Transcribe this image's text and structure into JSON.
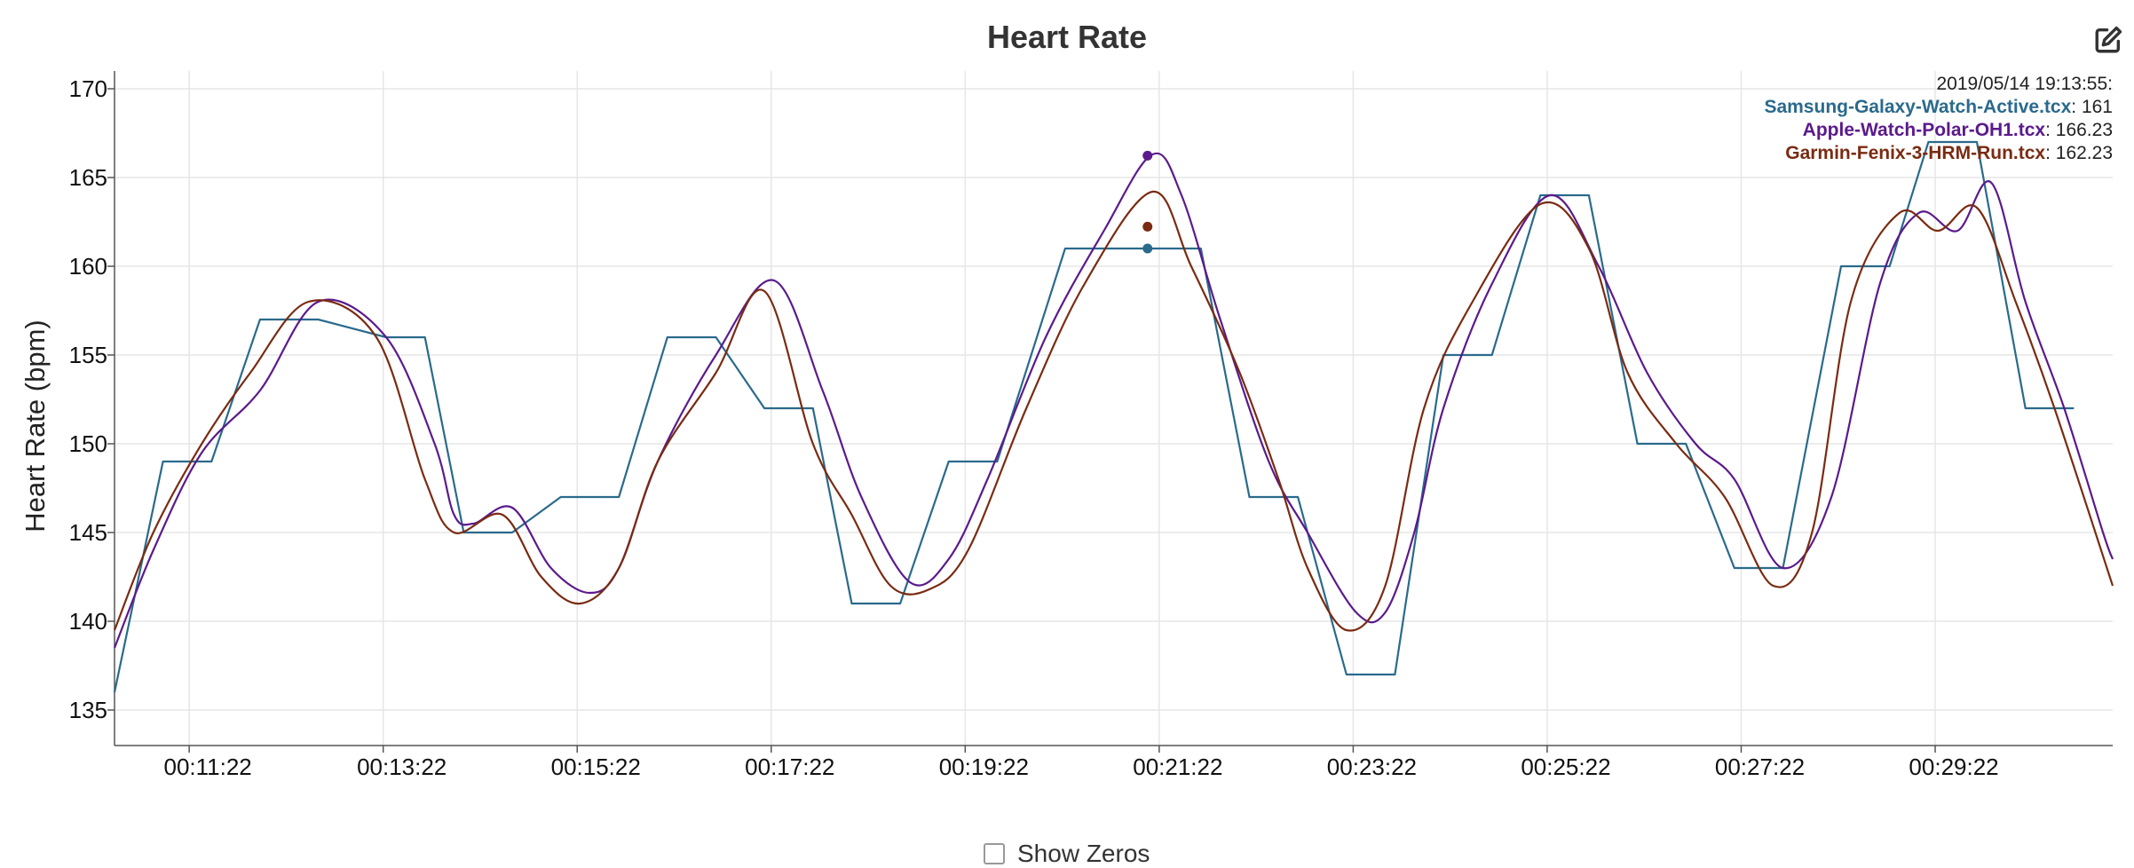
{
  "chart_data": {
    "type": "line",
    "title": "Heart Rate",
    "xlabel": "",
    "ylabel": "Heart Rate (bpm)",
    "ylim": [
      133,
      171
    ],
    "yticks": [
      135,
      140,
      145,
      150,
      155,
      160,
      165,
      170
    ],
    "xlim": [
      10.6,
      31.2
    ],
    "xticks": [
      11.37,
      13.37,
      15.37,
      17.37,
      19.37,
      21.37,
      23.37,
      25.37,
      27.37,
      29.37
    ],
    "xtick_labels": [
      "00:11:22",
      "00:13:22",
      "00:15:22",
      "00:17:22",
      "00:19:22",
      "00:21:22",
      "00:23:22",
      "00:25:22",
      "00:27:22",
      "00:29:22"
    ],
    "grid": true,
    "x_unit": "minutes",
    "legend": {
      "position": "top-right",
      "timestamp": "2019/05/14 19:13:55:",
      "entries": [
        {
          "name": "Samsung-Galaxy-Watch-Active.tcx",
          "value_text": ": 161"
        },
        {
          "name": "Apple-Watch-Polar-OH1.tcx",
          "value_text": ": 166.23"
        },
        {
          "name": "Garmin-Fenix-3-HRM-Run.tcx",
          "value_text": ": 162.23"
        }
      ]
    },
    "cursor": {
      "x": 21.25,
      "values": [
        161,
        166.23,
        162.23
      ]
    },
    "series": [
      {
        "name": "Samsung-Galaxy-Watch-Active.tcx",
        "color": "#2a6a8c",
        "interpolation": "linear",
        "points": [
          [
            10.6,
            136
          ],
          [
            11.1,
            149
          ],
          [
            11.6,
            149
          ],
          [
            12.1,
            157
          ],
          [
            12.7,
            157
          ],
          [
            13.4,
            156
          ],
          [
            13.8,
            156
          ],
          [
            14.2,
            145
          ],
          [
            14.7,
            145
          ],
          [
            15.2,
            147
          ],
          [
            15.8,
            147
          ],
          [
            16.3,
            156
          ],
          [
            16.8,
            156
          ],
          [
            17.3,
            152
          ],
          [
            17.8,
            152
          ],
          [
            18.2,
            141
          ],
          [
            18.7,
            141
          ],
          [
            19.2,
            149
          ],
          [
            19.7,
            149
          ],
          [
            20.4,
            161
          ],
          [
            21.3,
            161
          ],
          [
            21.8,
            161
          ],
          [
            22.3,
            147
          ],
          [
            22.8,
            147
          ],
          [
            23.3,
            137
          ],
          [
            23.8,
            137
          ],
          [
            24.3,
            155
          ],
          [
            24.8,
            155
          ],
          [
            25.3,
            164
          ],
          [
            25.8,
            164
          ],
          [
            26.3,
            150
          ],
          [
            26.8,
            150
          ],
          [
            27.3,
            143
          ],
          [
            27.8,
            143
          ],
          [
            28.4,
            160
          ],
          [
            28.9,
            160
          ],
          [
            29.3,
            167
          ],
          [
            29.8,
            167
          ],
          [
            30.3,
            152
          ],
          [
            30.8,
            152
          ]
        ]
      },
      {
        "name": "Apple-Watch-Polar-OH1.tcx",
        "color": "#5b1a8c",
        "interpolation": "smooth",
        "points": [
          [
            10.6,
            138.5
          ],
          [
            11.0,
            144
          ],
          [
            11.5,
            149.5
          ],
          [
            12.1,
            153
          ],
          [
            12.7,
            158
          ],
          [
            13.4,
            156
          ],
          [
            13.9,
            150
          ],
          [
            14.1,
            146
          ],
          [
            14.3,
            145.5
          ],
          [
            14.7,
            146.4
          ],
          [
            15.1,
            143
          ],
          [
            15.5,
            141.6
          ],
          [
            15.8,
            143
          ],
          [
            16.2,
            149
          ],
          [
            16.8,
            155
          ],
          [
            17.4,
            159.2
          ],
          [
            17.9,
            153
          ],
          [
            18.3,
            147
          ],
          [
            18.8,
            142.2
          ],
          [
            19.2,
            143.5
          ],
          [
            19.6,
            148
          ],
          [
            20.2,
            156
          ],
          [
            20.8,
            162
          ],
          [
            21.3,
            166.3
          ],
          [
            21.6,
            164
          ],
          [
            22.0,
            157
          ],
          [
            22.5,
            149
          ],
          [
            22.9,
            145
          ],
          [
            23.4,
            140.5
          ],
          [
            23.7,
            140.5
          ],
          [
            24.0,
            145
          ],
          [
            24.3,
            152
          ],
          [
            24.8,
            159
          ],
          [
            25.4,
            164
          ],
          [
            25.9,
            160
          ],
          [
            26.4,
            154
          ],
          [
            26.9,
            150
          ],
          [
            27.3,
            148
          ],
          [
            27.8,
            143
          ],
          [
            28.3,
            147
          ],
          [
            28.8,
            159
          ],
          [
            29.2,
            163
          ],
          [
            29.6,
            162
          ],
          [
            29.95,
            164.7
          ],
          [
            30.3,
            158
          ],
          [
            30.7,
            152
          ],
          [
            31.1,
            145
          ],
          [
            31.2,
            143.5
          ]
        ]
      },
      {
        "name": "Garmin-Fenix-3-HRM-Run.tcx",
        "color": "#7a2b12",
        "interpolation": "smooth",
        "points": [
          [
            10.6,
            139.5
          ],
          [
            11.0,
            145
          ],
          [
            11.5,
            150
          ],
          [
            12.0,
            154
          ],
          [
            12.6,
            158
          ],
          [
            13.3,
            156
          ],
          [
            13.8,
            148
          ],
          [
            14.1,
            145
          ],
          [
            14.6,
            146
          ],
          [
            15.0,
            142.5
          ],
          [
            15.4,
            141
          ],
          [
            15.8,
            143
          ],
          [
            16.2,
            149
          ],
          [
            16.8,
            154
          ],
          [
            17.3,
            158.6
          ],
          [
            17.8,
            150
          ],
          [
            18.2,
            146
          ],
          [
            18.6,
            142
          ],
          [
            19.0,
            141.8
          ],
          [
            19.4,
            144
          ],
          [
            20.0,
            152
          ],
          [
            20.6,
            159
          ],
          [
            21.3,
            164.2
          ],
          [
            21.7,
            160
          ],
          [
            22.2,
            154
          ],
          [
            22.6,
            148
          ],
          [
            22.9,
            143
          ],
          [
            23.3,
            139.5
          ],
          [
            23.7,
            142
          ],
          [
            24.1,
            152
          ],
          [
            24.6,
            158
          ],
          [
            25.3,
            163.5
          ],
          [
            25.8,
            161
          ],
          [
            26.2,
            154
          ],
          [
            26.7,
            150
          ],
          [
            27.2,
            147
          ],
          [
            27.7,
            142
          ],
          [
            28.1,
            145
          ],
          [
            28.5,
            158
          ],
          [
            29.0,
            163
          ],
          [
            29.4,
            162
          ],
          [
            29.8,
            163.3
          ],
          [
            30.2,
            158
          ],
          [
            30.6,
            152
          ],
          [
            31.2,
            142
          ]
        ]
      }
    ]
  },
  "controls": {
    "show_zeros_label": "Show Zeros",
    "edit_icon_name": "edit-icon"
  }
}
